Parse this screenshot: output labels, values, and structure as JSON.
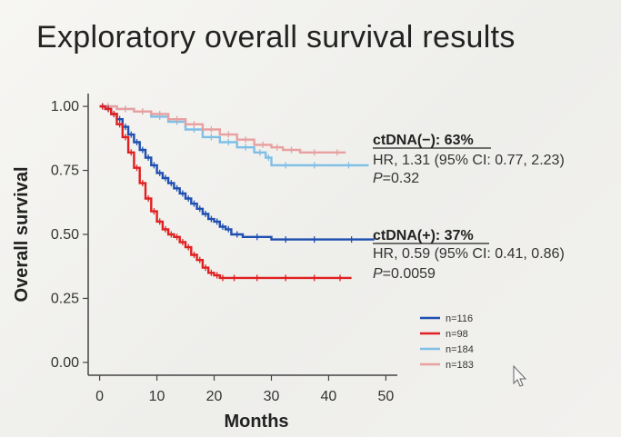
{
  "slide": {
    "title": "Exploratory overall survival results"
  },
  "chart_data": {
    "type": "line",
    "title": "",
    "xlabel": "Months",
    "ylabel": "Overall survival",
    "xlim": [
      -2,
      52
    ],
    "ylim": [
      -0.05,
      1.05
    ],
    "x_ticks": [
      "0",
      "10",
      "20",
      "30",
      "40",
      "50"
    ],
    "y_ticks": [
      "0.00",
      "0.25",
      "0.50",
      "0.75",
      "1.00"
    ],
    "grid": false,
    "step": true,
    "series": [
      {
        "name": "n=116",
        "color": "#1f4fb0",
        "x": [
          0,
          1,
          2,
          3,
          4,
          5,
          6,
          7,
          8,
          9,
          10,
          11,
          12,
          13,
          14,
          15,
          16,
          17,
          18,
          19,
          20,
          21,
          22,
          23,
          25,
          30,
          35,
          40,
          48
        ],
        "y": [
          1.0,
          0.99,
          0.97,
          0.95,
          0.92,
          0.89,
          0.86,
          0.83,
          0.8,
          0.77,
          0.74,
          0.72,
          0.7,
          0.68,
          0.66,
          0.64,
          0.62,
          0.6,
          0.58,
          0.56,
          0.55,
          0.53,
          0.52,
          0.5,
          0.49,
          0.48,
          0.48,
          0.48,
          0.48
        ]
      },
      {
        "name": "n=98",
        "color": "#e02020",
        "x": [
          0,
          1,
          2,
          3,
          4,
          5,
          6,
          7,
          8,
          9,
          10,
          11,
          12,
          13,
          14,
          15,
          16,
          17,
          18,
          19,
          20,
          21,
          22,
          25,
          30,
          35,
          40,
          44
        ],
        "y": [
          1.0,
          0.99,
          0.97,
          0.93,
          0.88,
          0.82,
          0.76,
          0.7,
          0.64,
          0.59,
          0.55,
          0.52,
          0.5,
          0.49,
          0.47,
          0.45,
          0.42,
          0.4,
          0.37,
          0.35,
          0.34,
          0.33,
          0.33,
          0.33,
          0.33,
          0.33,
          0.33,
          0.33
        ]
      },
      {
        "name": "n=184",
        "color": "#7fbfe6",
        "x": [
          0,
          3,
          6,
          9,
          12,
          15,
          18,
          21,
          24,
          27,
          29,
          30,
          35,
          40,
          47
        ],
        "y": [
          1.0,
          0.99,
          0.98,
          0.96,
          0.94,
          0.91,
          0.88,
          0.86,
          0.84,
          0.82,
          0.8,
          0.77,
          0.77,
          0.77,
          0.77
        ]
      },
      {
        "name": "n=183",
        "color": "#e8a0a0",
        "x": [
          0,
          3,
          6,
          9,
          12,
          15,
          18,
          21,
          24,
          27,
          30,
          32,
          35,
          40,
          43
        ],
        "y": [
          1.0,
          0.99,
          0.98,
          0.97,
          0.95,
          0.93,
          0.91,
          0.89,
          0.87,
          0.85,
          0.84,
          0.83,
          0.82,
          0.82,
          0.82
        ]
      }
    ],
    "annotations": [
      {
        "heading": "ctDNA(−): 63%",
        "line1": "HR, 1.31 (95% CI: 0.77, 2.23)",
        "p_label": "P",
        "p_value": "=0.32"
      },
      {
        "heading": "ctDNA(+): 37%",
        "line1": "HR, 0.59 (95% CI: 0.41, 0.86)",
        "p_label": "P",
        "p_value": "=0.0059"
      }
    ],
    "legend_placement": "bottom-right"
  }
}
